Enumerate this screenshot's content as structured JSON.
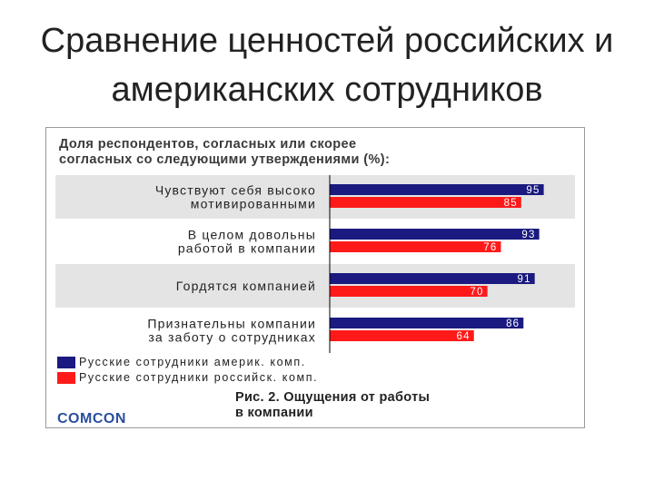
{
  "slide": {
    "title_lines": [
      "Сравнение ценностей российских и",
      "американских сотрудников"
    ]
  },
  "chart_data": {
    "type": "bar",
    "orientation": "horizontal",
    "title_lines": [
      "Доля респондентов, согласных или скорее",
      "согласных со следующими утверждениями (%):"
    ],
    "categories": [
      [
        "Чувствуют себя высоко",
        "мотивированными"
      ],
      [
        "В целом довольны",
        "работой в компании"
      ],
      [
        "Гордятся компанией"
      ],
      [
        "Признательны компании",
        "за заботу о сотрудниках"
      ]
    ],
    "series": [
      {
        "name": "Русские сотрудники америк. комп.",
        "color": "#1a1a80",
        "values": [
          95,
          93,
          91,
          86
        ]
      },
      {
        "name": "Русские сотрудники российск. комп.",
        "color": "#ff1a1a",
        "values": [
          85,
          76,
          70,
          64
        ]
      }
    ],
    "xlim": [
      0,
      100
    ],
    "grid": false,
    "legend_position": "bottom-left",
    "row_band_color": "#e4e4e4"
  },
  "footer": {
    "logo": "COMCON",
    "caption_lines": [
      "Рис. 2. Ощущения от работы",
      "в компании"
    ]
  }
}
